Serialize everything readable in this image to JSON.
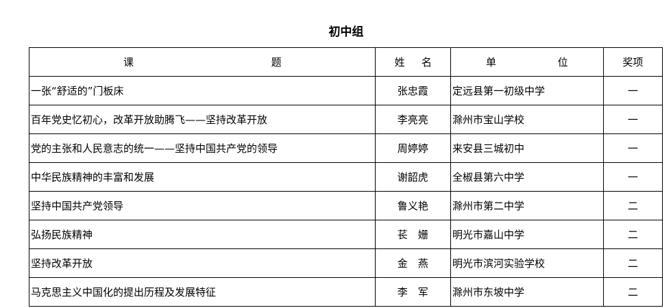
{
  "title": "初中组",
  "headers": {
    "topic": [
      "课",
      "题"
    ],
    "name": [
      "姓",
      "名"
    ],
    "unit": [
      "单",
      "位"
    ],
    "award": "奖项"
  },
  "rows": [
    {
      "topic": "一张“舒适的”门板床",
      "name": "张忠霞",
      "unit": "定远县第一初级中学",
      "award": "一"
    },
    {
      "topic": "百年党史忆初心，改革开放助腾飞——坚持改革开放",
      "name": "李亮亮",
      "unit": "滁州市宝山学校",
      "award": "一"
    },
    {
      "topic": "党的主张和人民意志的统一——坚持中国共产党的领导",
      "name": "周婷婷",
      "unit": "来安县三城初中",
      "award": "一"
    },
    {
      "topic": "中华民族精神的丰富和发展",
      "name": "谢韶虎",
      "unit": "全椒县第六中学",
      "award": "一"
    },
    {
      "topic": "坚持中国共产党领导",
      "name": "鲁义艳",
      "unit": "滁州市第二中学",
      "award": "二"
    },
    {
      "topic": "弘扬民族精神",
      "name": "苌　姗",
      "unit": "明光市嘉山中学",
      "award": "二"
    },
    {
      "topic": "坚持改革开放",
      "name": "金　燕",
      "unit": "明光市滨河实验学校",
      "award": "二"
    },
    {
      "topic": "马克思主义中国化的提出历程及发展特征",
      "name": "李　军",
      "unit": "滁州市东坡中学",
      "award": "二"
    }
  ]
}
